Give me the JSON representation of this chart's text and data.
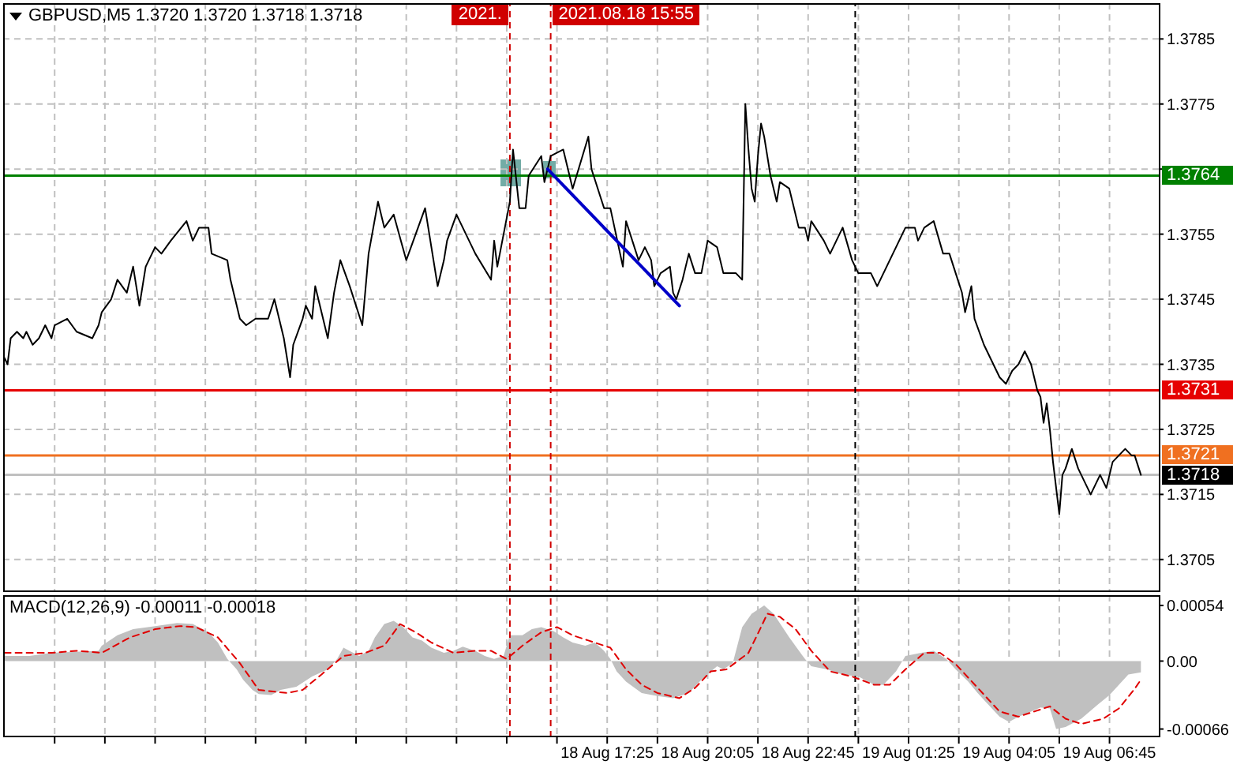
{
  "chart_data": [
    {
      "type": "line",
      "title": "GBPUSD,M5 1.3720 1.3720 1.3718 1.3718",
      "xlim": [
        "2021-08-18T01:23",
        "2021-08-19T08:06"
      ],
      "xticks": [
        {
          "value": "2021-08-18T02:45",
          "label": null
        },
        {
          "value": "2021-08-18T04:05",
          "label": null
        },
        {
          "value": "2021-08-18T05:25",
          "label": null
        },
        {
          "value": "2021-08-18T06:45",
          "label": null
        },
        {
          "value": "2021-08-18T08:05",
          "label": null
        },
        {
          "value": "2021-08-18T09:25",
          "label": null
        },
        {
          "value": "2021-08-18T10:45",
          "label": null
        },
        {
          "value": "2021-08-18T12:05",
          "label": null
        },
        {
          "value": "2021-08-18T13:25",
          "label": null
        },
        {
          "value": "2021-08-18T14:45",
          "label": null
        },
        {
          "value": "2021-08-18T16:05",
          "label": null
        },
        {
          "value": "2021-08-18T17:25",
          "label": null
        },
        {
          "value": "2021-08-18T18:45",
          "label": null
        },
        {
          "value": "2021-08-18T20:05",
          "label": null
        },
        {
          "value": "2021-08-18T21:25",
          "label": null
        },
        {
          "value": "2021-08-18T22:45",
          "label": null
        },
        {
          "value": "2021-08-19T00:05",
          "label": null
        },
        {
          "value": "2021-08-19T01:25",
          "label": null
        },
        {
          "value": "2021-08-19T02:45",
          "label": null
        },
        {
          "value": "2021-08-19T04:05",
          "label": null
        },
        {
          "value": "2021-08-19T05:25",
          "label": null
        },
        {
          "value": "2021-08-19T06:45",
          "label": null
        }
      ],
      "ylim": [
        1.37,
        1.37905
      ],
      "yticks": [
        1.3705,
        1.3715,
        1.3725,
        1.3735,
        1.3745,
        1.3755,
        {
          "value": 1.3765,
          "label": null
        },
        1.3775,
        1.3785
      ],
      "grid": true,
      "tick_labels": "y",
      "series": [
        {
          "color": "#000000",
          "x": [
            "2021-08-18T01:25",
            "2021-08-18T01:30",
            "2021-08-18T01:35",
            "2021-08-18T01:45",
            "2021-08-18T01:55",
            "2021-08-18T02:00",
            "2021-08-18T02:10",
            "2021-08-18T02:20",
            "2021-08-18T02:30",
            "2021-08-18T02:40",
            "2021-08-18T02:45",
            "2021-08-18T03:05",
            "2021-08-18T03:20",
            "2021-08-18T03:45",
            "2021-08-18T03:55",
            "2021-08-18T04:00",
            "2021-08-18T04:15",
            "2021-08-18T04:25",
            "2021-08-18T04:40",
            "2021-08-18T04:50",
            "2021-08-18T05:00",
            "2021-08-18T05:10",
            "2021-08-18T05:25",
            "2021-08-18T05:35",
            "2021-08-18T05:50",
            "2021-08-18T06:15",
            "2021-08-18T06:25",
            "2021-08-18T06:35",
            "2021-08-18T06:50",
            "2021-08-18T06:55",
            "2021-08-18T07:20",
            "2021-08-18T07:25",
            "2021-08-18T07:40",
            "2021-08-18T07:50",
            "2021-08-18T08:05",
            "2021-08-18T08:25",
            "2021-08-18T08:35",
            "2021-08-18T08:50",
            "2021-08-18T09:00",
            "2021-08-18T09:05",
            "2021-08-18T09:20",
            "2021-08-18T09:25",
            "2021-08-18T09:35",
            "2021-08-18T09:40",
            "2021-08-18T10:00",
            "2021-08-18T10:10",
            "2021-08-18T10:20",
            "2021-08-18T10:35",
            "2021-08-18T10:55",
            "2021-08-18T11:05",
            "2021-08-18T11:20",
            "2021-08-18T11:30",
            "2021-08-18T11:45",
            "2021-08-18T12:05",
            "2021-08-18T12:35",
            "2021-08-18T12:55",
            "2021-08-18T13:05",
            "2021-08-18T13:10",
            "2021-08-18T13:25",
            "2021-08-18T13:55",
            "2021-08-18T14:20",
            "2021-08-18T14:25",
            "2021-08-18T14:30",
            "2021-08-18T14:40",
            "2021-08-18T14:50",
            "2021-08-18T14:55",
            "2021-08-18T15:05",
            "2021-08-18T15:15",
            "2021-08-18T15:20",
            "2021-08-18T15:40",
            "2021-08-18T15:45",
            "2021-08-18T15:55",
            "2021-08-18T16:15",
            "2021-08-18T16:30",
            "2021-08-18T16:55",
            "2021-08-18T17:00",
            "2021-08-18T17:20",
            "2021-08-18T17:30",
            "2021-08-18T17:50",
            "2021-08-18T17:55",
            "2021-08-18T18:15",
            "2021-08-18T18:25",
            "2021-08-18T18:35",
            "2021-08-18T18:40",
            "2021-08-18T18:50",
            "2021-08-18T19:05",
            "2021-08-18T19:10",
            "2021-08-18T19:15",
            "2021-08-18T19:25",
            "2021-08-18T19:35",
            "2021-08-18T19:45",
            "2021-08-18T19:55",
            "2021-08-18T20:05",
            "2021-08-18T20:20",
            "2021-08-18T20:30",
            "2021-08-18T20:45",
            "2021-08-18T20:50",
            "2021-08-18T21:00",
            "2021-08-18T21:05",
            "2021-08-18T21:10",
            "2021-08-18T21:15",
            "2021-08-18T21:20",
            "2021-08-18T21:25",
            "2021-08-18T21:30",
            "2021-08-18T21:35",
            "2021-08-18T21:45",
            "2021-08-18T21:55",
            "2021-08-18T22:00",
            "2021-08-18T22:15",
            "2021-08-18T22:30",
            "2021-08-18T22:40",
            "2021-08-18T22:45",
            "2021-08-18T22:50",
            "2021-08-18T23:10",
            "2021-08-18T23:20",
            "2021-08-18T23:40",
            "2021-08-18T23:55",
            "2021-08-19T00:05",
            "2021-08-19T00:25",
            "2021-08-19T00:35",
            "2021-08-19T00:55",
            "2021-08-19T01:10",
            "2021-08-19T01:20",
            "2021-08-19T01:35",
            "2021-08-19T01:40",
            "2021-08-19T01:50",
            "2021-08-19T02:05",
            "2021-08-19T02:20",
            "2021-08-19T02:30",
            "2021-08-19T02:40",
            "2021-08-19T02:50",
            "2021-08-19T02:55",
            "2021-08-19T03:05",
            "2021-08-19T03:10",
            "2021-08-19T03:25",
            "2021-08-19T03:40",
            "2021-08-19T03:50",
            "2021-08-19T04:00",
            "2021-08-19T04:10",
            "2021-08-19T04:20",
            "2021-08-19T04:30",
            "2021-08-19T04:40",
            "2021-08-19T04:50",
            "2021-08-19T04:55",
            "2021-08-19T05:00",
            "2021-08-19T05:05",
            "2021-08-19T05:10",
            "2021-08-19T05:15",
            "2021-08-19T05:25",
            "2021-08-19T05:30",
            "2021-08-19T05:35",
            "2021-08-19T05:45",
            "2021-08-19T05:55",
            "2021-08-19T06:15",
            "2021-08-19T06:30",
            "2021-08-19T06:40",
            "2021-08-19T06:50",
            "2021-08-19T07:10",
            "2021-08-19T07:20",
            "2021-08-19T07:25",
            "2021-08-19T07:35"
          ],
          "values": [
            1.3736,
            1.3735,
            1.3739,
            1.374,
            1.3739,
            1.374,
            1.3738,
            1.3739,
            1.3741,
            1.3739,
            1.3741,
            1.3742,
            1.374,
            1.3739,
            1.3741,
            1.3743,
            1.3745,
            1.3748,
            1.3746,
            1.375,
            1.3744,
            1.375,
            1.3753,
            1.3752,
            1.3754,
            1.3757,
            1.3754,
            1.3756,
            1.3756,
            1.3752,
            1.3751,
            1.3748,
            1.3742,
            1.3741,
            1.3742,
            1.3742,
            1.3745,
            1.3739,
            1.3733,
            1.3738,
            1.3742,
            1.3744,
            1.3742,
            1.3747,
            1.3739,
            1.3746,
            1.3751,
            1.3747,
            1.3741,
            1.3752,
            1.376,
            1.3756,
            1.3758,
            1.3751,
            1.3759,
            1.3747,
            1.3751,
            1.3754,
            1.3758,
            1.3752,
            1.3748,
            1.3754,
            1.375,
            1.3755,
            1.376,
            1.3768,
            1.3759,
            1.3759,
            1.3764,
            1.3767,
            1.3763,
            1.3767,
            1.3768,
            1.3762,
            1.377,
            1.3765,
            1.3759,
            1.3759,
            1.375,
            1.3757,
            1.3751,
            1.3753,
            1.3751,
            1.3747,
            1.3749,
            1.375,
            1.3746,
            1.3745,
            1.3748,
            1.3752,
            1.3749,
            1.3749,
            1.3754,
            1.3753,
            1.3749,
            1.3749,
            1.3749,
            1.3748,
            1.3775,
            1.3768,
            1.3762,
            1.376,
            1.3767,
            1.3772,
            1.377,
            1.3764,
            1.376,
            1.3763,
            1.3762,
            1.3756,
            1.3756,
            1.3754,
            1.3757,
            1.3754,
            1.3752,
            1.3756,
            1.3751,
            1.3749,
            1.3749,
            1.3747,
            1.3751,
            1.3754,
            1.3756,
            1.3756,
            1.3754,
            1.3756,
            1.3757,
            1.3752,
            1.3752,
            1.3749,
            1.3746,
            1.3743,
            1.3747,
            1.3742,
            1.3738,
            1.3735,
            1.3733,
            1.3732,
            1.3734,
            1.3735,
            1.3737,
            1.3735,
            1.3731,
            1.373,
            1.3726,
            1.3729,
            1.3725,
            1.372,
            1.3712,
            1.3718,
            1.3719,
            1.3722,
            1.3719,
            1.3715,
            1.3718,
            1.3716,
            1.372,
            1.3722,
            1.3721,
            1.3721,
            1.3718
          ]
        },
        {
          "color": "#0000c8",
          "x": [
            "2021-08-18T15:50",
            "2021-08-18T19:20"
          ],
          "values": [
            1.3765,
            1.3744
          ]
        }
      ],
      "ref_lines": [
        {
          "axis": "y",
          "value": 1.3764,
          "label": "1.3764",
          "color": "#008000"
        },
        {
          "axis": "y",
          "value": 1.3731,
          "label": "1.3731",
          "color": "#e60000"
        },
        {
          "axis": "y",
          "value": 1.3721,
          "label": "1.3721",
          "color": "#f07020"
        },
        {
          "axis": "y",
          "value": 1.3718,
          "label": "1.3718",
          "color": "#c0c0c0"
        },
        {
          "axis": "x",
          "value": "2021-08-18T14:50",
          "label": "2021.",
          "color": "#d00000",
          "line_style": "dashed"
        },
        {
          "axis": "x",
          "value": "2021-08-18T15:55",
          "label": "2021.08.18 15:55",
          "color": "#d00000",
          "line_style": "dashed"
        },
        {
          "axis": "x",
          "value": "2021-08-19T00:00",
          "color": "#000000",
          "line_style": "dashed"
        }
      ]
    },
    {
      "type": "area",
      "title": "MACD(12,26,9) -0.00011 -0.00018",
      "xlim": [
        "2021-08-18T01:23",
        "2021-08-19T08:06"
      ],
      "xticks": [
        {
          "value": "2021-08-18T02:45",
          "label": null
        },
        {
          "value": "2021-08-18T04:05",
          "label": null
        },
        {
          "value": "2021-08-18T05:25",
          "label": null
        },
        {
          "value": "2021-08-18T06:45",
          "label": null
        },
        {
          "value": "2021-08-18T08:05",
          "label": null
        },
        {
          "value": "2021-08-18T09:25",
          "label": null
        },
        {
          "value": "2021-08-18T10:45",
          "label": null
        },
        {
          "value": "2021-08-18T12:05",
          "label": null
        },
        {
          "value": "2021-08-18T13:25",
          "label": null
        },
        {
          "value": "2021-08-18T14:45",
          "label": null
        },
        {
          "value": "2021-08-18T16:05",
          "label": null
        },
        {
          "value": "2021-08-18T17:25",
          "label": "18 Aug 17:25"
        },
        {
          "value": "2021-08-18T18:45",
          "label": null
        },
        {
          "value": "2021-08-18T20:05",
          "label": "18 Aug 20:05"
        },
        {
          "value": "2021-08-18T21:25",
          "label": null
        },
        {
          "value": "2021-08-18T22:45",
          "label": "18 Aug 22:45"
        },
        {
          "value": "2021-08-19T00:05",
          "label": null
        },
        {
          "value": "2021-08-19T01:25",
          "label": "19 Aug 01:25"
        },
        {
          "value": "2021-08-19T02:45",
          "label": null
        },
        {
          "value": "2021-08-19T04:05",
          "label": "19 Aug 04:05"
        },
        {
          "value": "2021-08-19T05:25",
          "label": null
        },
        {
          "value": "2021-08-19T06:45",
          "label": "19 Aug 06:45"
        }
      ],
      "ylim": [
        -0.00074,
        0.00064
      ],
      "yticks": [
        -0.00066,
        {
          "value": 0,
          "label": "0.00"
        },
        0.00054
      ],
      "grid": "x",
      "series": [
        {
          "color": "#c0c0c0",
          "x": [
            "2021-08-18T01:25",
            "2021-08-18T02:05",
            "2021-08-18T02:40",
            "2021-08-18T03:55",
            "2021-08-18T04:00",
            "2021-08-18T04:25",
            "2021-08-18T04:50",
            "2021-08-18T05:25",
            "2021-08-18T06:00",
            "2021-08-18T06:25",
            "2021-08-18T06:50",
            "2021-08-18T07:05",
            "2021-08-18T07:20",
            "2021-08-18T07:35",
            "2021-08-18T07:45",
            "2021-08-18T08:00",
            "2021-08-18T08:10",
            "2021-08-18T08:30",
            "2021-08-18T08:45",
            "2021-08-18T09:10",
            "2021-08-18T09:35",
            "2021-08-18T10:00",
            "2021-08-18T10:15",
            "2021-08-18T10:25",
            "2021-08-18T10:50",
            "2021-08-18T11:05",
            "2021-08-18T11:15",
            "2021-08-18T11:30",
            "2021-08-18T11:45",
            "2021-08-18T12:00",
            "2021-08-18T12:15",
            "2021-08-18T12:30",
            "2021-08-18T12:45",
            "2021-08-18T13:05",
            "2021-08-18T13:20",
            "2021-08-18T13:35",
            "2021-08-18T13:55",
            "2021-08-18T14:10",
            "2021-08-18T14:25",
            "2021-08-18T14:40",
            "2021-08-18T14:50",
            "2021-08-18T15:10",
            "2021-08-18T15:25",
            "2021-08-18T15:40",
            "2021-08-18T16:00",
            "2021-08-18T16:15",
            "2021-08-18T16:30",
            "2021-08-18T16:50",
            "2021-08-18T17:05",
            "2021-08-18T17:20",
            "2021-08-18T17:30",
            "2021-08-18T17:40",
            "2021-08-18T17:55",
            "2021-08-18T18:20",
            "2021-08-18T18:45",
            "2021-08-18T19:10",
            "2021-08-18T19:35",
            "2021-08-18T19:55",
            "2021-08-18T20:20",
            "2021-08-18T20:30",
            "2021-08-18T20:45",
            "2021-08-18T21:00",
            "2021-08-18T21:15",
            "2021-08-18T21:35",
            "2021-08-18T21:50",
            "2021-08-18T22:15",
            "2021-08-18T22:40",
            "2021-08-18T22:50",
            "2021-08-18T23:15",
            "2021-08-18T23:40",
            "2021-08-19T00:05",
            "2021-08-19T00:30",
            "2021-08-19T00:45",
            "2021-08-19T01:05",
            "2021-08-19T01:20",
            "2021-08-19T01:45",
            "2021-08-19T02:05",
            "2021-08-19T02:25",
            "2021-08-19T02:40",
            "2021-08-19T03:00",
            "2021-08-19T03:15",
            "2021-08-19T03:30",
            "2021-08-19T03:50",
            "2021-08-19T04:05",
            "2021-08-19T04:20",
            "2021-08-19T04:40",
            "2021-08-19T04:55",
            "2021-08-19T05:10",
            "2021-08-19T05:20",
            "2021-08-19T05:35",
            "2021-08-19T06:00",
            "2021-08-19T06:25",
            "2021-08-19T06:45",
            "2021-08-19T07:00",
            "2021-08-19T07:15",
            "2021-08-19T07:35"
          ],
          "values": [
            5e-05,
            5e-05,
            8e-05,
            0.0001,
            0.00015,
            0.00025,
            0.00031,
            0.00034,
            0.00037,
            0.00036,
            0.00028,
            0.00018,
            2e-05,
            -8e-05,
            -0.00018,
            -0.00028,
            -0.00032,
            -0.00033,
            -0.00028,
            -0.00025,
            -0.00015,
            -8e-05,
            2e-05,
            0.00013,
            5e-05,
            0.0001,
            0.00023,
            0.00036,
            0.00039,
            0.00033,
            0.00023,
            0.0002,
            0.00013,
            8e-05,
            0.0001,
            0.00014,
            0.0001,
            5e-05,
            2e-05,
            5e-05,
            0.00025,
            0.00025,
            0.00031,
            0.00033,
            0.00029,
            0.00023,
            0.00018,
            0.00015,
            0.00018,
            0.0001,
            2e-05,
            -0.0001,
            -0.0002,
            -0.00031,
            -0.00034,
            -0.00036,
            -0.00031,
            -0.00018,
            -5e-05,
            -8e-05,
            -2e-05,
            0.00033,
            0.00046,
            0.00054,
            0.00046,
            0.00023,
            2e-05,
            -5e-05,
            -8e-05,
            -0.00013,
            -0.00015,
            -0.00023,
            -0.00023,
            -0.0001,
            5e-05,
            8e-05,
            0.0001,
            2e-05,
            -8e-05,
            -0.0002,
            -0.00031,
            -0.00041,
            -0.00054,
            -0.00059,
            -0.00054,
            -0.00049,
            -0.00045,
            -0.00046,
            -0.00066,
            -0.00064,
            -0.00056,
            -0.00043,
            -0.00033,
            -0.00023,
            -0.00013,
            -0.00011
          ]
        },
        {
          "type": "line",
          "color": "#e00000",
          "line_style": "dashed",
          "x": [
            "2021-08-18T01:25",
            "2021-08-18T02:40",
            "2021-08-18T03:20",
            "2021-08-18T04:00",
            "2021-08-18T04:45",
            "2021-08-18T05:25",
            "2021-08-18T06:05",
            "2021-08-18T06:30",
            "2021-08-18T07:05",
            "2021-08-18T07:40",
            "2021-08-18T08:10",
            "2021-08-18T08:55",
            "2021-08-18T09:20",
            "2021-08-18T09:50",
            "2021-08-18T10:25",
            "2021-08-18T11:00",
            "2021-08-18T11:30",
            "2021-08-18T11:55",
            "2021-08-18T12:20",
            "2021-08-18T12:45",
            "2021-08-18T13:20",
            "2021-08-18T13:55",
            "2021-08-18T14:20",
            "2021-08-18T14:45",
            "2021-08-18T15:10",
            "2021-08-18T15:40",
            "2021-08-18T16:05",
            "2021-08-18T16:30",
            "2021-08-18T16:55",
            "2021-08-18T17:30",
            "2021-08-18T17:55",
            "2021-08-18T18:20",
            "2021-08-18T18:45",
            "2021-08-18T19:20",
            "2021-08-18T19:45",
            "2021-08-18T20:10",
            "2021-08-18T20:35",
            "2021-08-18T21:10",
            "2021-08-18T21:30",
            "2021-08-18T21:40",
            "2021-08-18T22:00",
            "2021-08-18T22:25",
            "2021-08-18T22:50",
            "2021-08-18T23:20",
            "2021-08-18T23:55",
            "2021-08-19T00:30",
            "2021-08-19T00:55",
            "2021-08-19T01:20",
            "2021-08-19T01:50",
            "2021-08-19T02:15",
            "2021-08-19T02:40",
            "2021-08-19T03:15",
            "2021-08-19T03:50",
            "2021-08-19T04:20",
            "2021-08-19T04:45",
            "2021-08-19T05:10",
            "2021-08-19T05:35",
            "2021-08-19T06:00",
            "2021-08-19T06:35",
            "2021-08-19T07:00",
            "2021-08-19T07:25",
            "2021-08-19T07:35"
          ],
          "values": [
            8e-05,
            8e-05,
            0.0001,
            8e-05,
            0.00023,
            0.00031,
            0.00034,
            0.00033,
            0.00023,
            -2e-05,
            -0.00028,
            -0.00031,
            -0.00028,
            -0.00013,
            5e-05,
            8e-05,
            0.00015,
            0.00036,
            0.00028,
            0.00018,
            8e-05,
            0.0001,
            0.0001,
            2e-05,
            0.00015,
            0.00028,
            0.00033,
            0.00025,
            0.0002,
            0.00013,
            -8e-05,
            -0.00023,
            -0.00031,
            -0.00036,
            -0.00026,
            -0.0001,
            -8e-05,
            8e-05,
            0.00033,
            0.00046,
            0.00043,
            0.00031,
            0.0001,
            -0.0001,
            -0.00015,
            -0.00023,
            -0.00023,
            -8e-05,
            8e-05,
            8e-05,
            -3e-05,
            -0.00026,
            -0.00049,
            -0.00054,
            -0.00049,
            -0.00044,
            -0.00056,
            -0.00061,
            -0.00056,
            -0.00046,
            -0.00027,
            -0.00018
          ]
        }
      ],
      "ref_lines": [
        {
          "axis": "x",
          "value": "2021-08-18T14:50",
          "color": "#d00000",
          "line_style": "dashed"
        },
        {
          "axis": "x",
          "value": "2021-08-18T15:55",
          "color": "#d00000",
          "line_style": "dashed"
        },
        {
          "axis": "x",
          "value": "2021-08-19T00:00",
          "color": "#000000",
          "line_style": "dashed"
        }
      ]
    }
  ]
}
